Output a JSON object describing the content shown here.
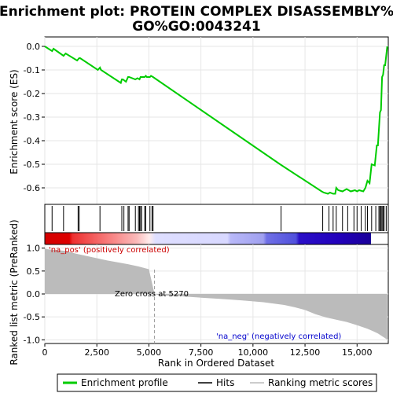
{
  "chart_data": [
    {
      "type": "line",
      "title": "Enrichment plot: PROTEIN COMPLEX DISASSEMBLY%\nGO%GO:0043241",
      "ylabel": "Enrichment score (ES)",
      "xlim": [
        0,
        16500
      ],
      "ylim": [
        -0.67,
        0.04
      ],
      "yticks": [
        "0.0",
        "-0.1",
        "-0.2",
        "-0.3",
        "-0.4",
        "-0.5",
        "-0.6"
      ],
      "grid": true,
      "color": "#00cc00",
      "series": [
        {
          "name": "Enrichment profile",
          "x": [
            0,
            350,
            420,
            900,
            1000,
            1550,
            1650,
            1700,
            2550,
            2650,
            2700,
            3650,
            3700,
            3750,
            3900,
            4000,
            4050,
            4350,
            4450,
            4550,
            4600,
            4700,
            4800,
            4850,
            4900,
            5050,
            5100,
            5200,
            11300,
            13300,
            13400,
            13600,
            13700,
            13850,
            13950,
            14000,
            14100,
            14300,
            14500,
            14700,
            14900,
            15000,
            15100,
            15300,
            15400,
            15500,
            15600,
            15700,
            15850,
            15950,
            16000,
            16100,
            16150,
            16200,
            16250,
            16300,
            16350,
            16450
          ],
          "y": [
            0.0,
            -0.02,
            -0.01,
            -0.04,
            -0.03,
            -0.06,
            -0.05,
            -0.05,
            -0.1,
            -0.09,
            -0.1,
            -0.155,
            -0.14,
            -0.14,
            -0.15,
            -0.13,
            -0.13,
            -0.14,
            -0.135,
            -0.14,
            -0.13,
            -0.13,
            -0.13,
            -0.125,
            -0.13,
            -0.13,
            -0.125,
            -0.13,
            -0.5,
            -0.615,
            -0.62,
            -0.625,
            -0.62,
            -0.625,
            -0.625,
            -0.6,
            -0.61,
            -0.615,
            -0.605,
            -0.615,
            -0.61,
            -0.615,
            -0.61,
            -0.615,
            -0.6,
            -0.57,
            -0.58,
            -0.5,
            -0.505,
            -0.42,
            -0.42,
            -0.28,
            -0.27,
            -0.13,
            -0.12,
            -0.08,
            -0.08,
            0.0
          ]
        }
      ]
    },
    {
      "type": "hits",
      "series": [
        {
          "name": "Hits",
          "x": [
            350,
            900,
            1600,
            1650,
            2650,
            3700,
            3800,
            4000,
            4050,
            4350,
            4500,
            4550,
            4600,
            4650,
            4800,
            4850,
            5050,
            5150,
            5200,
            11350,
            13350,
            13650,
            13850,
            14000,
            14300,
            14550,
            14850,
            15000,
            15200,
            15400,
            15500,
            15700,
            15900,
            16050,
            16100,
            16150,
            16200,
            16250,
            16300,
            16400
          ]
        }
      ]
    },
    {
      "type": "area",
      "xlabel": "Rank in Ordered Dataset",
      "ylabel": "Ranked list metric (PreRanked)",
      "xlim": [
        0,
        16500
      ],
      "ylim": [
        -1.08,
        1.08
      ],
      "xticks": [
        "0",
        "2,500",
        "5,000",
        "7,500",
        "10,000",
        "12,500",
        "15,000"
      ],
      "yticks": [
        "1.0",
        "0.5",
        "0.0",
        "-0.5",
        "-1.0"
      ],
      "grid": true,
      "annotations": {
        "pos": "'na_pos' (positively correlated)",
        "neg": "'na_neg' (negatively correlated)",
        "zero": "Zero cross at 5270"
      },
      "zero_cross": 5270,
      "color": "#bbbbbb",
      "series": [
        {
          "name": "Ranking metric scores",
          "x": [
            0,
            60,
            200,
            500,
            1000,
            1500,
            2000,
            2500,
            3000,
            3500,
            4000,
            4500,
            5000,
            5270,
            5500,
            6500,
            7500,
            8500,
            9500,
            10500,
            11500,
            12000,
            12500,
            13000,
            13500,
            14000,
            14500,
            15000,
            15500,
            15800,
            16000,
            16200,
            16300,
            16400,
            16450
          ],
          "y": [
            1.0,
            0.98,
            0.97,
            0.96,
            0.94,
            0.88,
            0.83,
            0.78,
            0.73,
            0.69,
            0.65,
            0.6,
            0.54,
            0.0,
            -0.03,
            -0.05,
            -0.08,
            -0.11,
            -0.14,
            -0.18,
            -0.24,
            -0.29,
            -0.35,
            -0.44,
            -0.51,
            -0.56,
            -0.61,
            -0.68,
            -0.76,
            -0.82,
            -0.86,
            -0.92,
            -0.95,
            -0.98,
            -1.0
          ]
        }
      ]
    }
  ],
  "legend": {
    "items": [
      {
        "label": "Enrichment profile",
        "color": "#00cc00",
        "style": "line"
      },
      {
        "label": "Hits",
        "color": "#000000",
        "style": "line"
      },
      {
        "label": "Ranking metric scores",
        "color": "#bbbbbb",
        "style": "line"
      }
    ]
  }
}
